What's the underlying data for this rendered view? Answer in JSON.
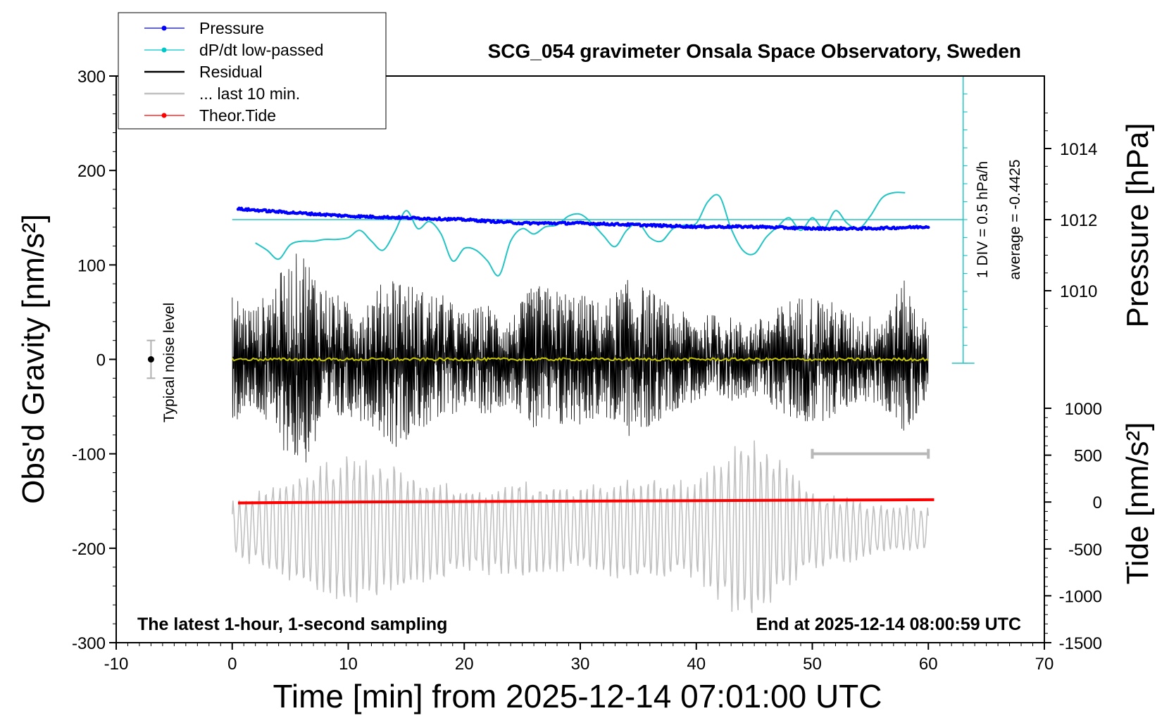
{
  "chart_data": {
    "type": "line",
    "title": "SCG_054 gravimeter Onsala Space Observatory, Sweden",
    "xlabel": "Time [min] from 2025-12-14 07:01:00 UTC",
    "ylabel_left": "Obs'd Gravity [nm/s²]",
    "ylabel_pressure": "Pressure [hPa]",
    "ylabel_tide": "Tide [nm/s²]",
    "xlim": [
      -10,
      70
    ],
    "ylim": [
      -300,
      300
    ],
    "x_ticks": [
      "-10",
      "0",
      "10",
      "20",
      "30",
      "40",
      "50",
      "60",
      "70"
    ],
    "y_ticks": [
      "300",
      "200",
      "100",
      "0",
      "-100",
      "-200",
      "-300"
    ],
    "pressure_ticks": [
      "1014",
      "1012",
      "1010"
    ],
    "tide_ticks": [
      "1000",
      "500",
      "0",
      "-500",
      "-1000",
      "-1500"
    ],
    "bottom_left_note": "The latest 1-hour, 1-second sampling",
    "bottom_right_note": "End at 2025-12-14 08:00:59 UTC",
    "noise_label": "Typical noise level",
    "div_label": "1 DIV = 0.5 hPa/h",
    "average_label": "average = -0.4425",
    "legend": [
      {
        "name": "Pressure",
        "color": "#0000ff",
        "marker": true
      },
      {
        "name": "dP/dt low-passed",
        "color": "#00c8c8",
        "marker": true
      },
      {
        "name": "Residual",
        "color": "#000000",
        "marker": false
      },
      {
        "name": "... last 10 min.",
        "color": "#c0c0c0",
        "marker": false
      },
      {
        "name": "Theor.Tide",
        "color": "#ff0000",
        "marker": true
      }
    ],
    "colors": {
      "pressure": "#0000ff",
      "dpdt": "#22c4c4",
      "residual": "#000000",
      "residual_mean": "#c8c800",
      "last10": "#c0c0c0",
      "tide": "#ff0000"
    },
    "series": [
      {
        "name": "Pressure",
        "axis": "pressure_hPa",
        "x": [
          0.5,
          5,
          10,
          15,
          20,
          25,
          30,
          35,
          40,
          45,
          50,
          55,
          60
        ],
        "values": [
          1012.3,
          1012.2,
          1012.1,
          1012.05,
          1012.0,
          1011.9,
          1011.9,
          1011.85,
          1011.8,
          1011.8,
          1011.75,
          1011.75,
          1011.8
        ]
      },
      {
        "name": "dP/dt low-passed",
        "axis": "divisions_from_average",
        "x": [
          2,
          3,
          4,
          5,
          6,
          7,
          8,
          9,
          10,
          11,
          12,
          13,
          14,
          15,
          16,
          17,
          18,
          19,
          20,
          21,
          22,
          23,
          24,
          25,
          26,
          27,
          28,
          29,
          30,
          31,
          32,
          33,
          34,
          35,
          36,
          37,
          38,
          39,
          40,
          41,
          42,
          43,
          44,
          45,
          46,
          47,
          48,
          49,
          50,
          51,
          52,
          53,
          54,
          55,
          56,
          57,
          58
        ],
        "values": [
          -1.3,
          -1.7,
          -2.2,
          -1.4,
          -1.2,
          -1.2,
          -1.1,
          -1.1,
          -1.0,
          -0.6,
          -1.2,
          -1.7,
          -0.7,
          0.5,
          -0.5,
          -0.1,
          -0.8,
          -2.3,
          -1.6,
          -1.7,
          -2.3,
          -3.1,
          -1.2,
          -0.5,
          -0.8,
          -0.4,
          -0.3,
          0.2,
          0.3,
          -0.2,
          -0.9,
          -1.5,
          -0.6,
          -0.2,
          -1.0,
          -1.2,
          -0.5,
          -0.3,
          -0.2,
          1.0,
          1.3,
          -0.5,
          -1.7,
          -1.9,
          -1.0,
          -0.4,
          0.1,
          -0.6,
          0.1,
          -0.5,
          0.5,
          -0.2,
          -0.5,
          0.2,
          1.2,
          1.5,
          1.5
        ]
      },
      {
        "name": "Residual",
        "axis": "gravity_nm_s2",
        "x_range": [
          0,
          60
        ],
        "envelope": {
          "x": [
            0,
            2,
            4,
            6,
            8,
            10,
            12,
            14,
            16,
            18,
            20,
            22,
            24,
            26,
            28,
            30,
            32,
            34,
            36,
            38,
            40,
            42,
            44,
            46,
            48,
            50,
            52,
            54,
            56,
            58,
            60
          ],
          "values": [
            70,
            55,
            90,
            120,
            80,
            60,
            70,
            95,
            75,
            70,
            50,
            60,
            45,
            80,
            75,
            70,
            60,
            85,
            75,
            55,
            45,
            50,
            40,
            45,
            65,
            70,
            60,
            45,
            50,
            85,
            35
          ]
        }
      },
      {
        "name": "... last 10 min.",
        "axis": "gravity_nm_s2",
        "x_range": [
          0,
          60
        ],
        "envelope": {
          "x": [
            0,
            5,
            10,
            15,
            20,
            25,
            30,
            35,
            40,
            43,
            45,
            47,
            50,
            55,
            60
          ],
          "values": [
            30,
            60,
            85,
            70,
            45,
            55,
            45,
            60,
            55,
            90,
            110,
            80,
            45,
            30,
            25
          ]
        }
      },
      {
        "name": "Theor.Tide",
        "axis": "tide_nm_s2",
        "x": [
          0.5,
          10,
          20,
          30,
          40,
          50,
          60.5
        ],
        "values": [
          -10,
          0,
          5,
          10,
          15,
          20,
          25
        ]
      }
    ],
    "noise_bar": {
      "x": -7,
      "y": 0,
      "half_range": 20
    },
    "last10_bar": {
      "x_start": 50,
      "x_end": 60,
      "y": -100
    },
    "dpdt_average_level_hPa": 1012,
    "dpdt_scale_divisions": 8
  }
}
